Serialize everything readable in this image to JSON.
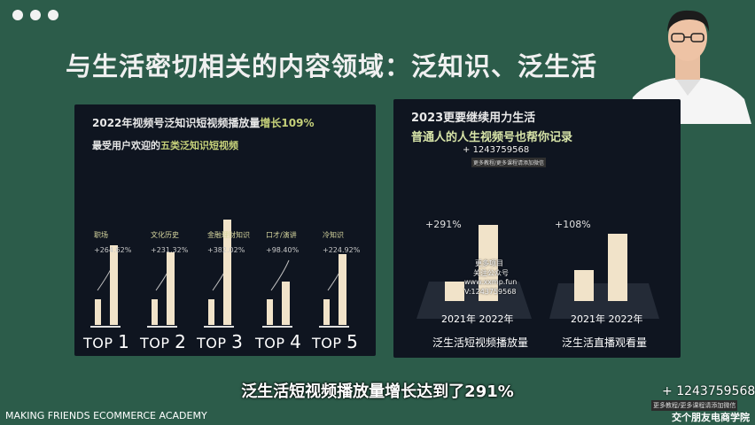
{
  "slide": {
    "title": "与生活密切相关的内容领域：泛知识、泛生活"
  },
  "left_panel": {
    "line1_prefix": "2022年视频号泛知识短视频播放量",
    "line1_accent": "增长109%",
    "line2_prefix": "最受用户欢迎的",
    "line2_accent": "五类泛知识短视频"
  },
  "right_panel": {
    "title": "2023更要继续用力生活",
    "subtitle": "普通人的人生视频号也帮你记录"
  },
  "watermark": {
    "phone": "1243759568",
    "tag": "更多教程/更多课程请添加微信",
    "text_line1": "更多项目",
    "text_line2": "关注公众号",
    "text_line3": "www.xxmp.fun",
    "text_line4": "V:1243759568"
  },
  "subtitle": "泛生活短视频播放量增长达到了291%",
  "footer": {
    "left": "MAKING FRIENDS ECOMMERCE ACADEMY",
    "right": "交个朋友电商学院"
  },
  "chart_data": [
    {
      "type": "bar",
      "categories": [
        "职场",
        "文化历史",
        "金融理财知识",
        "口才/演讲",
        "冷知识"
      ],
      "series": [
        {
          "values": [
            1,
            1,
            1,
            1,
            1
          ]
        },
        {
          "values": [
            3.6462,
            3.3132,
            4.8202,
            1.984,
            3.2492
          ]
        }
      ],
      "growth_labels": [
        "+264.62%",
        "+231.32%",
        "+382.02%",
        "+98.40%",
        "+224.92%"
      ],
      "rank_labels": [
        "TOP 1",
        "TOP 2",
        "TOP 3",
        "TOP 4",
        "TOP 5"
      ]
    },
    {
      "type": "bar",
      "groups": [
        {
          "caption": "泛生活短视频播放量",
          "growth": "+291%",
          "categories": [
            "2021年",
            "2022年"
          ],
          "values": [
            1,
            3.91
          ]
        },
        {
          "caption": "泛生活直播观看量",
          "growth": "+108%",
          "categories": [
            "2021年",
            "2022年"
          ],
          "values": [
            1,
            2.08
          ]
        }
      ]
    }
  ]
}
